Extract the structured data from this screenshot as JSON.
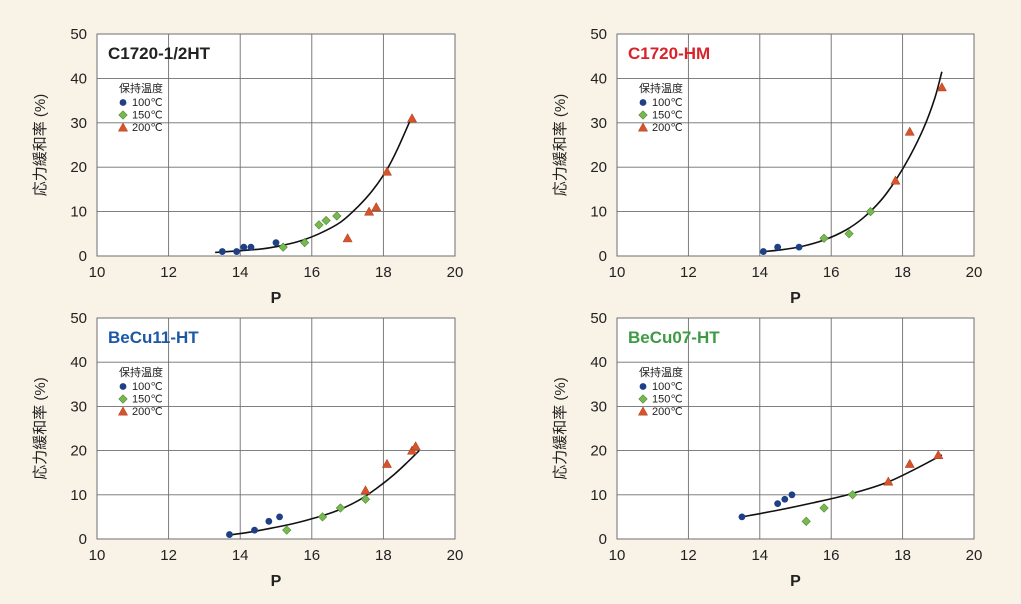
{
  "colors": {
    "page_background": "#f9f2e6",
    "plot_background": "#ffffff",
    "grid": "#6e6e6e",
    "curve": "#111111",
    "s100": "#1f3f87",
    "s150": "#78b851",
    "s200": "#d9532a"
  },
  "chart_data": [
    {
      "type": "scatter",
      "title": "C1720-1/2HT",
      "title_color": "#222222",
      "xlabel": "P",
      "ylabel": "応力緩和率 (%)",
      "xlim": [
        10,
        20
      ],
      "ylim": [
        0,
        50
      ],
      "x_ticks": [
        "10",
        "12",
        "14",
        "16",
        "18",
        "20"
      ],
      "y_ticks": [
        "0",
        "10",
        "20",
        "30",
        "40",
        "50"
      ],
      "grid": true,
      "legend_title": "保持温度",
      "legend_position": "top-left",
      "series": [
        {
          "name": "100℃",
          "marker": "circle",
          "points": [
            [
              13.5,
              1
            ],
            [
              13.9,
              1
            ],
            [
              14.1,
              2
            ],
            [
              14.3,
              2
            ],
            [
              15.0,
              3
            ]
          ]
        },
        {
          "name": "150℃",
          "marker": "diamond",
          "points": [
            [
              15.2,
              2
            ],
            [
              15.8,
              3
            ],
            [
              16.2,
              7
            ],
            [
              16.4,
              8
            ],
            [
              16.7,
              9
            ]
          ]
        },
        {
          "name": "200℃",
          "marker": "triangle",
          "points": [
            [
              17.0,
              4
            ],
            [
              17.6,
              10
            ],
            [
              17.8,
              11
            ],
            [
              18.1,
              19
            ],
            [
              18.8,
              31
            ]
          ]
        }
      ],
      "fit_curve": [
        [
          13.3,
          0.8
        ],
        [
          14.0,
          1.2
        ],
        [
          14.6,
          1.6
        ],
        [
          15.0,
          2.1
        ],
        [
          15.6,
          3.2
        ],
        [
          16.2,
          5.0
        ],
        [
          16.8,
          7.6
        ],
        [
          17.3,
          11.2
        ],
        [
          17.7,
          14.8
        ],
        [
          18.1,
          19.5
        ],
        [
          18.4,
          24.2
        ],
        [
          18.8,
          31.5
        ]
      ]
    },
    {
      "type": "scatter",
      "title": "C1720-HM",
      "title_color": "#d8232a",
      "xlabel": "P",
      "ylabel": "応力緩和率 (%)",
      "xlim": [
        10,
        20
      ],
      "ylim": [
        0,
        50
      ],
      "x_ticks": [
        "10",
        "12",
        "14",
        "16",
        "18",
        "20"
      ],
      "y_ticks": [
        "0",
        "10",
        "20",
        "30",
        "40",
        "50"
      ],
      "grid": true,
      "legend_title": "保持温度",
      "legend_position": "top-left",
      "series": [
        {
          "name": "100℃",
          "marker": "circle",
          "points": [
            [
              14.1,
              1
            ],
            [
              14.5,
              2
            ],
            [
              15.1,
              2
            ]
          ]
        },
        {
          "name": "150℃",
          "marker": "diamond",
          "points": [
            [
              15.8,
              4
            ],
            [
              16.5,
              5
            ],
            [
              17.1,
              10
            ]
          ]
        },
        {
          "name": "200℃",
          "marker": "triangle",
          "points": [
            [
              17.8,
              17
            ],
            [
              18.2,
              28
            ],
            [
              19.1,
              38
            ]
          ]
        }
      ],
      "fit_curve": [
        [
          14.0,
          0.9
        ],
        [
          14.6,
          1.4
        ],
        [
          15.2,
          2.2
        ],
        [
          15.8,
          3.6
        ],
        [
          16.4,
          5.8
        ],
        [
          16.9,
          8.6
        ],
        [
          17.4,
          12.6
        ],
        [
          17.8,
          17.0
        ],
        [
          18.2,
          22.4
        ],
        [
          18.6,
          29.0
        ],
        [
          18.9,
          35.5
        ],
        [
          19.1,
          41.5
        ]
      ]
    },
    {
      "type": "scatter",
      "title": "BeCu11-HT",
      "title_color": "#1c58a6",
      "xlabel": "P",
      "ylabel": "応力緩和率 (%)",
      "xlim": [
        10,
        20
      ],
      "ylim": [
        0,
        50
      ],
      "x_ticks": [
        "10",
        "12",
        "14",
        "16",
        "18",
        "20"
      ],
      "y_ticks": [
        "0",
        "10",
        "20",
        "30",
        "40",
        "50"
      ],
      "grid": true,
      "legend_title": "保持温度",
      "legend_position": "top-left",
      "series": [
        {
          "name": "100℃",
          "marker": "circle",
          "points": [
            [
              13.7,
              1
            ],
            [
              14.4,
              2
            ],
            [
              14.8,
              4
            ],
            [
              15.1,
              5
            ]
          ]
        },
        {
          "name": "150℃",
          "marker": "diamond",
          "points": [
            [
              15.3,
              2
            ],
            [
              16.3,
              5
            ],
            [
              16.8,
              7
            ],
            [
              17.5,
              9
            ]
          ]
        },
        {
          "name": "200℃",
          "marker": "triangle",
          "points": [
            [
              17.5,
              11
            ],
            [
              18.1,
              17
            ],
            [
              18.8,
              20
            ],
            [
              18.9,
              21
            ]
          ]
        }
      ],
      "fit_curve": [
        [
          13.7,
          0.9
        ],
        [
          14.3,
          1.6
        ],
        [
          14.9,
          2.5
        ],
        [
          15.5,
          3.5
        ],
        [
          16.1,
          4.8
        ],
        [
          16.7,
          6.4
        ],
        [
          17.3,
          8.7
        ],
        [
          17.8,
          11.4
        ],
        [
          18.3,
          14.6
        ],
        [
          18.7,
          17.6
        ],
        [
          19.0,
          20.0
        ]
      ]
    },
    {
      "type": "scatter",
      "title": "BeCu07-HT",
      "title_color": "#3f9a45",
      "xlabel": "P",
      "ylabel": "応力緩和率 (%)",
      "xlim": [
        10,
        20
      ],
      "ylim": [
        0,
        50
      ],
      "x_ticks": [
        "10",
        "12",
        "14",
        "16",
        "18",
        "20"
      ],
      "y_ticks": [
        "0",
        "10",
        "20",
        "30",
        "40",
        "50"
      ],
      "grid": true,
      "legend_title": "保持温度",
      "legend_position": "top-left",
      "series": [
        {
          "name": "100℃",
          "marker": "circle",
          "points": [
            [
              13.5,
              5
            ],
            [
              14.5,
              8
            ],
            [
              14.7,
              9
            ],
            [
              14.9,
              10
            ]
          ]
        },
        {
          "name": "150℃",
          "marker": "diamond",
          "points": [
            [
              15.3,
              4
            ],
            [
              15.8,
              7
            ],
            [
              16.6,
              10
            ]
          ]
        },
        {
          "name": "200℃",
          "marker": "triangle",
          "points": [
            [
              17.6,
              13
            ],
            [
              18.2,
              17
            ],
            [
              19.0,
              19
            ]
          ]
        }
      ],
      "fit_curve": [
        [
          13.5,
          5.0
        ],
        [
          14.5,
          6.5
        ],
        [
          15.5,
          8.2
        ],
        [
          16.5,
          10.1
        ],
        [
          17.5,
          12.6
        ],
        [
          18.3,
          15.6
        ],
        [
          19.1,
          19.0
        ]
      ]
    }
  ]
}
